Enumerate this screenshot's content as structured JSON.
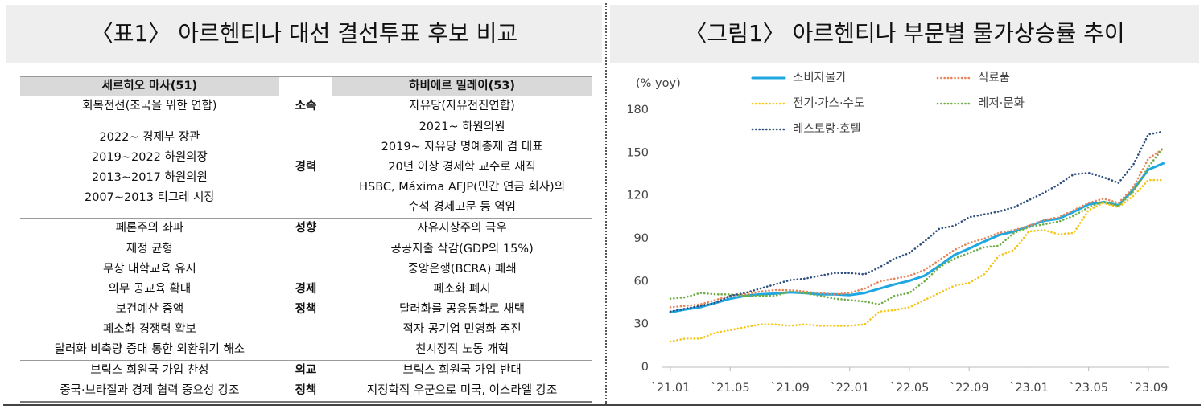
{
  "left_panel": {
    "title": "〈표1〉 아르헨티나 대선 결선투표 후보 비교",
    "table": {
      "header": {
        "left": "세르히오 마사(51)",
        "right": "하비에르 밀레이(53)"
      },
      "rows": [
        {
          "left": [
            "회복전선(조국을 위한 연합)"
          ],
          "label": [
            "소속"
          ],
          "right": [
            "자유당(자유전진연합)"
          ]
        },
        {
          "left": [
            "2022~ 경제부 장관",
            "2019~2022 하원의장",
            "2013~2017 하원의원",
            "2007~2013 티그레 시장"
          ],
          "label": [
            "경력"
          ],
          "right": [
            "2021~ 하원의원",
            "2019~ 자유당 명예총재 겸 대표",
            "20년 이상 경제학 교수로 재직",
            "HSBC, Máxima AFJP(민간 연금 회사)의",
            "수석 경제고문 등 역임"
          ]
        },
        {
          "left": [
            "페론주의 좌파"
          ],
          "label": [
            "성향"
          ],
          "right": [
            "자유지상주의 극우"
          ]
        },
        {
          "left": [
            "재정 균형",
            "무상 대학교육 유지",
            "의무 공교육 확대",
            "보건예산 증액",
            "페소화 경쟁력 확보",
            "달러화 비축량 증대 통한 외환위기 해소"
          ],
          "label": [
            "경제",
            "정책"
          ],
          "right": [
            "공공지출 삭감(GDP의 15%)",
            "중앙은행(BCRA) 폐쇄",
            "페소화 폐지",
            "달러화를 공용통화로 채택",
            "적자 공기업 민영화 추진",
            "친시장적 노동 개혁"
          ]
        },
        {
          "left": [
            "브릭스 회원국 가입 찬성",
            "중국·브라질과 경제 협력 중요성 강조"
          ],
          "label": [
            "외교",
            "정책"
          ],
          "right": [
            "브릭스 회원국 가입 반대",
            "지정학적 우군으로 미국, 이스라엘 강조"
          ]
        }
      ]
    }
  },
  "chart_data": {
    "type": "line",
    "title": "〈그림1〉 아르헨티나 부문별 물가상승률 추이",
    "y_label": "(% yoy)",
    "categories": [
      "`21.01",
      null,
      null,
      null,
      "`21.05",
      null,
      null,
      null,
      "`21.09",
      null,
      null,
      null,
      "`22.01",
      null,
      null,
      null,
      "`22.05",
      null,
      null,
      null,
      "`22.09",
      null,
      null,
      null,
      "`23.01",
      null,
      null,
      null,
      "`23.05",
      null,
      null,
      null,
      "`23.09",
      null
    ],
    "ylim": [
      0,
      180
    ],
    "yticks": [
      0,
      30,
      60,
      90,
      120,
      150,
      180
    ],
    "series": [
      {
        "name": "소비자물가",
        "color": "#1ea7e1",
        "style": "solid",
        "values": [
          38.5,
          40.5,
          42,
          45,
          48,
          50,
          51,
          51.5,
          52.5,
          52,
          51,
          51,
          50.5,
          52,
          55,
          58,
          60.5,
          64,
          71,
          78.5,
          83,
          88,
          92.5,
          95,
          98.8,
          102.5,
          104,
          108.8,
          114,
          115.6,
          113.4,
          124.4,
          138.3,
          142.7
        ]
      },
      {
        "name": "식료품",
        "color": "#e8845a",
        "style": "dotted",
        "values": [
          42,
          43,
          44,
          47,
          50,
          51,
          53,
          54,
          54,
          53,
          52,
          51,
          52,
          55,
          60,
          62,
          64,
          68,
          75,
          82,
          87,
          90,
          94,
          96,
          99,
          103,
          105,
          110,
          115,
          118,
          115,
          126,
          146,
          153
        ]
      },
      {
        "name": "전기·가스·수도",
        "color": "#f5c518",
        "style": "dotted",
        "values": [
          18,
          20,
          20,
          24,
          26,
          28,
          30,
          30,
          29,
          30,
          29,
          29,
          29,
          30,
          39,
          40,
          42,
          47,
          52,
          57,
          59,
          65,
          78,
          82,
          95,
          96,
          93,
          94,
          110,
          115,
          112,
          120,
          131,
          131
        ]
      },
      {
        "name": "레저·문화",
        "color": "#70ad47",
        "style": "dotted",
        "values": [
          48,
          49,
          52,
          51,
          51,
          50,
          50,
          50,
          53,
          52,
          50,
          48,
          47,
          46,
          44,
          50,
          52,
          60,
          70,
          76,
          80,
          84,
          85,
          94,
          98,
          100,
          102,
          106,
          112,
          116,
          113,
          123,
          140,
          154
        ]
      },
      {
        "name": "레스토랑·호텔",
        "color": "#2f4f7f",
        "style": "dotted",
        "values": [
          39,
          41,
          43,
          45,
          50,
          52,
          55,
          58,
          61,
          62,
          64,
          66,
          66,
          65,
          70,
          76,
          80,
          88,
          97,
          99,
          105,
          107,
          109,
          112,
          117,
          122,
          128,
          135,
          136,
          133,
          129,
          142,
          163,
          165
        ]
      }
    ]
  }
}
